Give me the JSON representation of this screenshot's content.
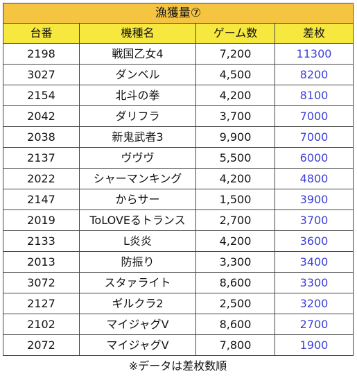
{
  "title": "漁獲量⑦",
  "headers": {
    "id": "台番",
    "name": "機種名",
    "games": "ゲーム数",
    "diff": "差枚"
  },
  "rows": [
    {
      "id": "2198",
      "name": "戦国乙女4",
      "games": "7,200",
      "diff": "11300"
    },
    {
      "id": "3027",
      "name": "ダンベル",
      "games": "4,500",
      "diff": "8200"
    },
    {
      "id": "2154",
      "name": "北斗の拳",
      "games": "4,200",
      "diff": "8100"
    },
    {
      "id": "2042",
      "name": "ダリフラ",
      "games": "3,700",
      "diff": "7000"
    },
    {
      "id": "2038",
      "name": "新鬼武者3",
      "games": "9,900",
      "diff": "7000"
    },
    {
      "id": "2137",
      "name": "ヴヴヴ",
      "games": "5,500",
      "diff": "6000"
    },
    {
      "id": "2022",
      "name": "シャーマンキング",
      "games": "4,200",
      "diff": "4800"
    },
    {
      "id": "2147",
      "name": "からサー",
      "games": "1,500",
      "diff": "3900"
    },
    {
      "id": "2019",
      "name": "ToLOVEるトランス",
      "games": "2,700",
      "diff": "3700"
    },
    {
      "id": "2133",
      "name": "L炎炎",
      "games": "4,200",
      "diff": "3600"
    },
    {
      "id": "2013",
      "name": "防振り",
      "games": "3,300",
      "diff": "3400"
    },
    {
      "id": "3072",
      "name": "スタァライト",
      "games": "8,600",
      "diff": "3300"
    },
    {
      "id": "2127",
      "name": "ギルクラ2",
      "games": "2,500",
      "diff": "3200"
    },
    {
      "id": "2102",
      "name": "マイジャグV",
      "games": "8,600",
      "diff": "2700"
    },
    {
      "id": "2072",
      "name": "マイジャグV",
      "games": "7,800",
      "diff": "1900"
    }
  ],
  "footnote": "※データは差枚数順",
  "colors": {
    "title_bg": "#f5c542",
    "header_bg": "#f7e840",
    "diff_text": "#3a3fd8",
    "border": "#444444"
  }
}
